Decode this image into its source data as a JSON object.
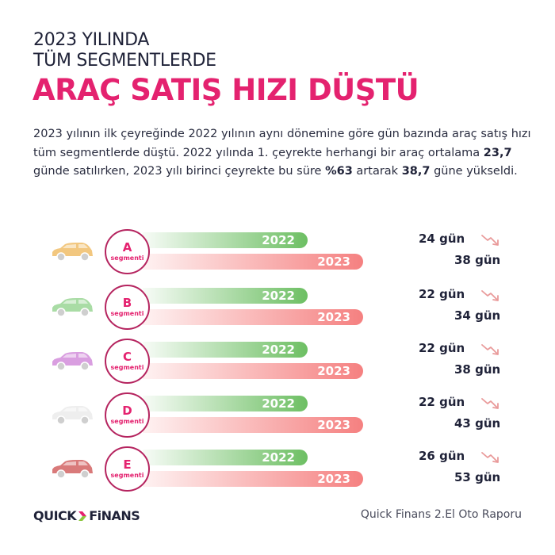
{
  "header": {
    "line1": "2023 YILINDA",
    "line2": "TÜM SEGMENTLERDE",
    "headline": "ARAÇ SATIŞ HIZI DÜŞTÜ"
  },
  "intro": {
    "p1": "2023 yılının ilk çeyreğinde 2022 yılının aynı dönemine göre gün bazında araç satış hızı tüm segmentlerde düştü. 2022 yılında 1. çeyrekte herhangi bir araç ortalama ",
    "b1": "23,7",
    "p2": " günde satılırken, 2023 yılı birinci çeyrekte bu süre ",
    "b2": "%63",
    "p3": " artarak ",
    "b3": "38,7",
    "p4": " güne yükseldi."
  },
  "colors": {
    "accent": "#e4226f",
    "circle_border": "#b5245f",
    "bar_2022": "#6dbf63",
    "bar_2023": "#f58080",
    "text_dark": "#1f2238",
    "trend_arrow": "#e99a9a"
  },
  "segments": [
    {
      "letter": "A",
      "word": "segmenti",
      "label_2022": "2022",
      "label_2023": "2023",
      "value_2022": "24 gün",
      "value_2023": "38 gün",
      "car_color": "#f2c77f",
      "icon": "hatchback-car-icon"
    },
    {
      "letter": "B",
      "word": "segmenti",
      "label_2022": "2022",
      "label_2023": "2023",
      "value_2022": "22 gün",
      "value_2023": "34 gün",
      "car_color": "#a9dca5",
      "icon": "sedan-car-icon"
    },
    {
      "letter": "C",
      "word": "segmenti",
      "label_2022": "2022",
      "label_2023": "2023",
      "value_2022": "22 gün",
      "value_2023": "38 gün",
      "car_color": "#d99ee0",
      "icon": "hatchback-car-icon"
    },
    {
      "letter": "D",
      "word": "segmenti",
      "label_2022": "2022",
      "label_2023": "2023",
      "value_2022": "22 gün",
      "value_2023": "43 gün",
      "car_color": "#eeeeee",
      "icon": "sedan-car-icon"
    },
    {
      "letter": "E",
      "word": "segmenti",
      "label_2022": "2022",
      "label_2023": "2023",
      "value_2022": "26 gün",
      "value_2023": "53 gün",
      "car_color": "#d97a7a",
      "icon": "sedan-car-icon"
    }
  ],
  "footer": {
    "logo_left": "QUICK",
    "logo_right": "FiNANS",
    "source": "Quick Finans 2.El Oto Raporu"
  },
  "chart_data": {
    "type": "bar",
    "title": "ARAÇ SATIŞ HIZI DÜŞTÜ",
    "subtitle": "2023 YILINDA TÜM SEGMENTLERDE",
    "categories": [
      "A segmenti",
      "B segmenti",
      "C segmenti",
      "D segmenti",
      "E segmenti"
    ],
    "series": [
      {
        "name": "2022",
        "values": [
          24,
          22,
          22,
          22,
          26
        ],
        "unit": "gün"
      },
      {
        "name": "2023",
        "values": [
          38,
          34,
          38,
          43,
          53
        ],
        "unit": "gün"
      }
    ],
    "orientation": "horizontal",
    "xlabel": "",
    "ylabel": "",
    "grid": false,
    "legend": "inline bar labels (2022, 2023)",
    "annotations": [
      "Ortalama: 2022 Q1 23,7 gün; 2023 Q1 38,7 gün (%63 artış)"
    ]
  }
}
